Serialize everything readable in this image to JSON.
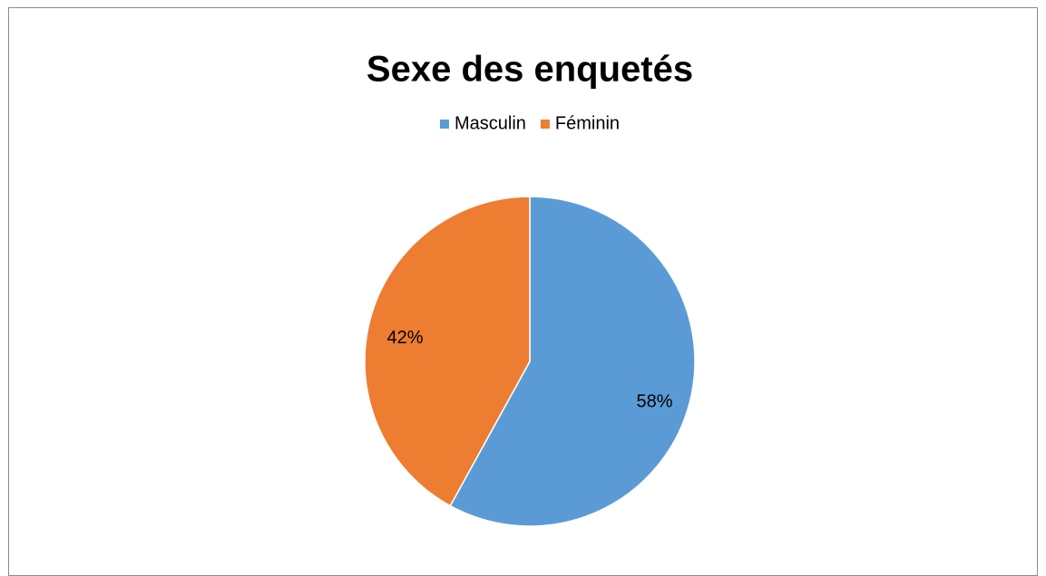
{
  "chart_data": {
    "type": "pie",
    "title": "Sexe des enquetés",
    "categories": [
      "Masculin",
      "Féminin"
    ],
    "values": [
      58,
      42
    ],
    "value_labels": [
      "58%",
      "42%"
    ],
    "colors": [
      "#5b9bd5",
      "#ed7d31"
    ],
    "legend": "top"
  }
}
